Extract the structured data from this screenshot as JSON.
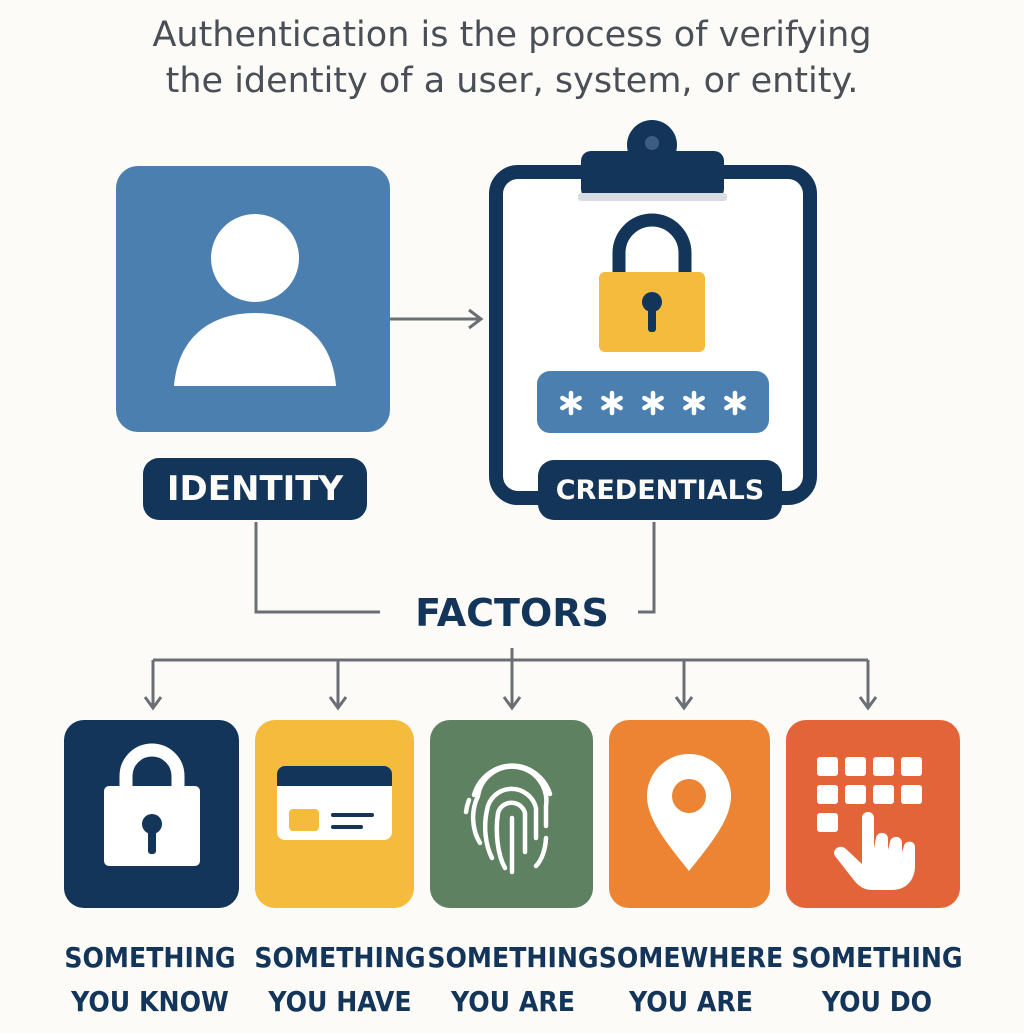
{
  "intro": {
    "line1": "Authentication is the process of verifying",
    "line2": "the identity of a user, system, or entity."
  },
  "identity": {
    "label": "IDENTITY"
  },
  "credentials": {
    "label": "CREDENTIALS",
    "password_mask": "*****"
  },
  "factors": {
    "title": "FACTORS",
    "items": [
      {
        "line1": "SOMETHING",
        "line2": "YOU KNOW",
        "icon": "padlock-icon",
        "color": "#13355a"
      },
      {
        "line1": "SOMETHING",
        "line2": "YOU HAVE",
        "icon": "id-card-icon",
        "color": "#f5bb3d"
      },
      {
        "line1": "SOMETHING",
        "line2": "YOU ARE",
        "icon": "fingerprint-icon",
        "color": "#5e8162"
      },
      {
        "line1": "SOMEWHERE",
        "line2": "YOU ARE",
        "icon": "location-pin-icon",
        "color": "#ec8433"
      },
      {
        "line1": "SOMETHING",
        "line2": "YOU DO",
        "icon": "keypad-touch-icon",
        "color": "#e4643a"
      }
    ]
  },
  "colors": {
    "navy": "#13355a",
    "identity_blue": "#4a7fb0",
    "lock_yellow": "#f5bb3d",
    "connector_gray": "#6b6f75",
    "background": "#fcfbf7"
  }
}
